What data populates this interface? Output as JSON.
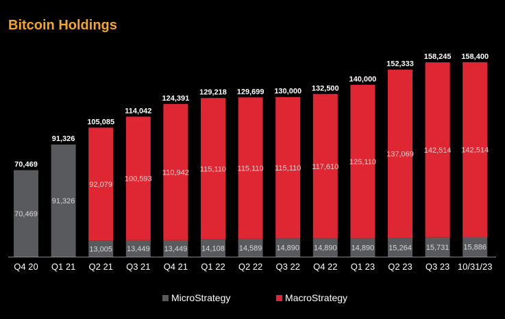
{
  "title": "Bitcoin Holdings",
  "colors": {
    "micro": "#595a5e",
    "macro": "#de2732",
    "title": "#f5a623"
  },
  "chart_data": {
    "type": "bar",
    "stacked": true,
    "categories": [
      "Q4 20",
      "Q1 21",
      "Q2 21",
      "Q3 21",
      "Q4 21",
      "Q1 22",
      "Q2 22",
      "Q3 22",
      "Q4 22",
      "Q1 23",
      "Q2 23",
      "Q3 23",
      "10/31/23"
    ],
    "series": [
      {
        "name": "MicroStrategy",
        "key": "micro",
        "values": [
          70469,
          91326,
          13005,
          13449,
          13449,
          14108,
          14589,
          14890,
          14890,
          14890,
          15264,
          15731,
          15886
        ],
        "labels": [
          "70,469",
          "91,326",
          "13,005",
          "13,449",
          "13,449",
          "14,108",
          "14,589",
          "14,890",
          "14,890",
          "14,890",
          "15,264",
          "15,731",
          "15,886"
        ]
      },
      {
        "name": "MacroStrategy",
        "key": "macro",
        "values": [
          0,
          0,
          92079,
          100593,
          110942,
          115110,
          115110,
          115110,
          117610,
          125110,
          137069,
          142514,
          142514
        ],
        "labels": [
          "",
          "",
          "92,079",
          "100,593",
          "110,942",
          "115,110",
          "115,110",
          "115,110",
          "117,610",
          "125,110",
          "137,069",
          "142,514",
          "142,514"
        ]
      }
    ],
    "totals": [
      70469,
      91326,
      105085,
      114042,
      124391,
      129218,
      129699,
      130000,
      132500,
      140000,
      152333,
      158245,
      158400
    ],
    "total_labels": [
      "70,469",
      "91,326",
      "105,085",
      "114,042",
      "124,391",
      "129,218",
      "129,699",
      "130,000",
      "132,500",
      "140,000",
      "152,333",
      "158,245",
      "158,400"
    ],
    "ylim": [
      0,
      175000
    ],
    "grid": false,
    "legend_position": "bottom"
  }
}
